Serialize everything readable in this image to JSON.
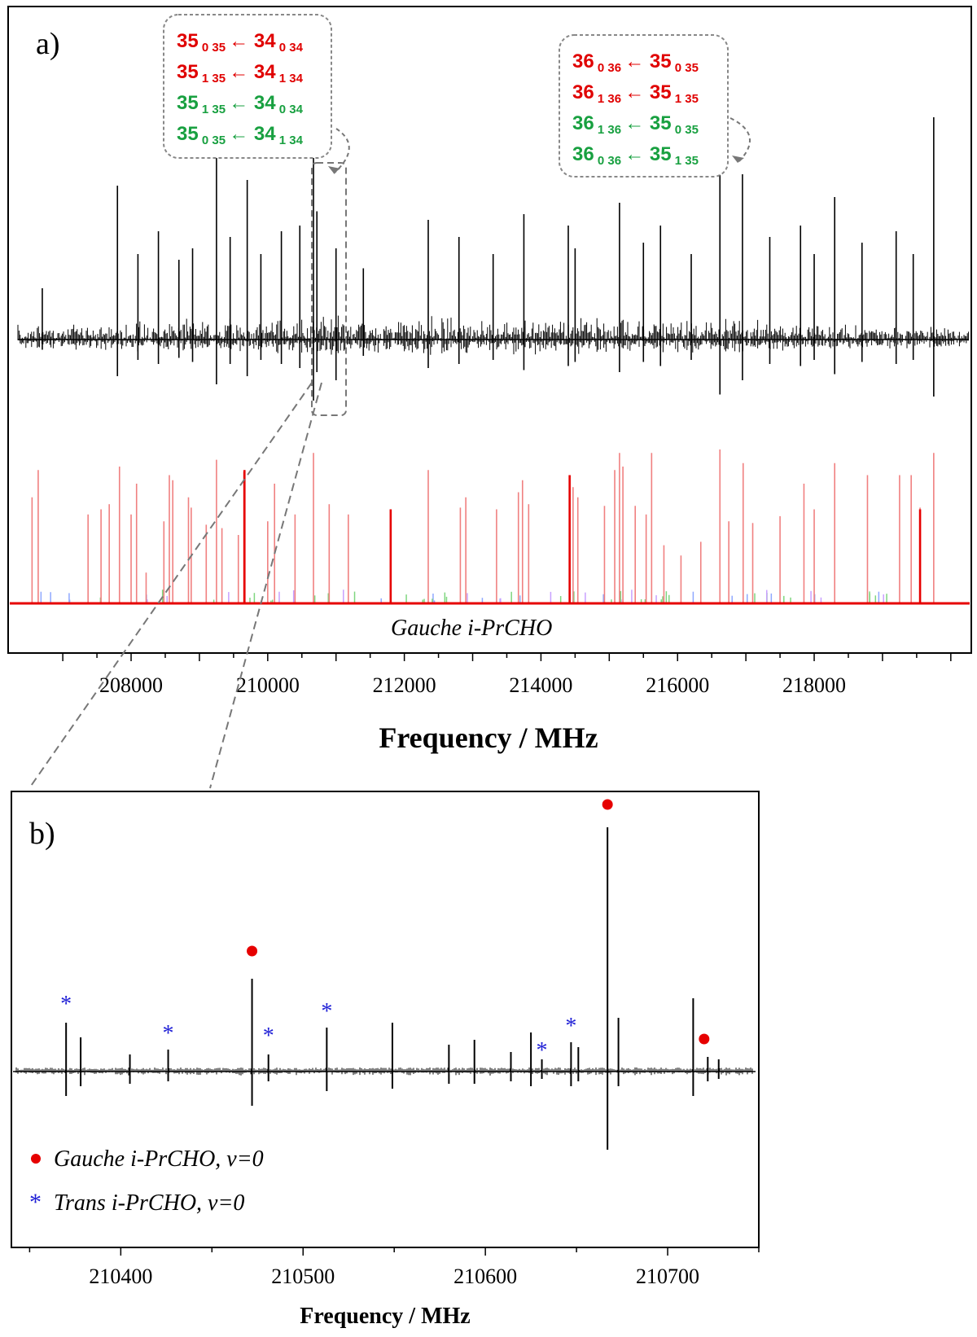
{
  "colors": {
    "observed": "#000000",
    "gauche_sim": "#e60000",
    "gauche_sim_light": "#f08080",
    "trans_marker": "#1f1fd6",
    "gauche_marker": "#e60000",
    "label_red": "#e00000",
    "label_green": "#18a040",
    "callout_border": "#888888"
  },
  "chart_data": [
    {
      "panel": "a)",
      "type": "line",
      "description_source": "stick spectrum: observed (black, top) and simulated Gauche i-PrCHO (red, bottom)",
      "xlabel": "Frequency / MHz",
      "xlim": [
        206200,
        220300
      ],
      "xticks": [
        208000,
        210000,
        212000,
        214000,
        216000,
        218000
      ],
      "xtick_labels": [
        "208000",
        "210000",
        "212000",
        "214000",
        "216000",
        "218000"
      ],
      "simulated_label": "Gauche i-PrCHO",
      "observed_peaks": [
        {
          "x": 206700,
          "up": 0.18,
          "down": 0.05
        },
        {
          "x": 207800,
          "up": 0.54,
          "down": 0.18
        },
        {
          "x": 208100,
          "up": 0.3,
          "down": 0.1
        },
        {
          "x": 208400,
          "up": 0.38,
          "down": 0.12
        },
        {
          "x": 208700,
          "up": 0.28,
          "down": 0.09
        },
        {
          "x": 208900,
          "up": 0.32,
          "down": 0.11
        },
        {
          "x": 209250,
          "up": 0.72,
          "down": 0.22
        },
        {
          "x": 209450,
          "up": 0.36,
          "down": 0.12
        },
        {
          "x": 209700,
          "up": 0.56,
          "down": 0.18
        },
        {
          "x": 209900,
          "up": 0.3,
          "down": 0.1
        },
        {
          "x": 210200,
          "up": 0.38,
          "down": 0.12
        },
        {
          "x": 210470,
          "up": 0.4,
          "down": 0.14
        },
        {
          "x": 210670,
          "up": 0.78,
          "down": 0.3
        },
        {
          "x": 210720,
          "up": 0.45,
          "down": 0.16
        },
        {
          "x": 211000,
          "up": 0.32,
          "down": 0.2
        },
        {
          "x": 211400,
          "up": 0.25,
          "down": 0.08
        },
        {
          "x": 212350,
          "up": 0.42,
          "down": 0.14
        },
        {
          "x": 212800,
          "up": 0.36,
          "down": 0.12
        },
        {
          "x": 213300,
          "up": 0.3,
          "down": 0.1
        },
        {
          "x": 213750,
          "up": 0.44,
          "down": 0.15
        },
        {
          "x": 214400,
          "up": 0.4,
          "down": 0.13
        },
        {
          "x": 214500,
          "up": 0.32,
          "down": 0.11
        },
        {
          "x": 215150,
          "up": 0.48,
          "down": 0.16
        },
        {
          "x": 215500,
          "up": 0.34,
          "down": 0.11
        },
        {
          "x": 215750,
          "up": 0.4,
          "down": 0.13
        },
        {
          "x": 216200,
          "up": 0.3,
          "down": 0.1
        },
        {
          "x": 216620,
          "up": 0.72,
          "down": 0.27
        },
        {
          "x": 216950,
          "up": 0.58,
          "down": 0.2
        },
        {
          "x": 217350,
          "up": 0.36,
          "down": 0.12
        },
        {
          "x": 217800,
          "up": 0.4,
          "down": 0.13
        },
        {
          "x": 218000,
          "up": 0.3,
          "down": 0.1
        },
        {
          "x": 218300,
          "up": 0.5,
          "down": 0.17
        },
        {
          "x": 218700,
          "up": 0.34,
          "down": 0.11
        },
        {
          "x": 219200,
          "up": 0.38,
          "down": 0.12
        },
        {
          "x": 219450,
          "up": 0.3,
          "down": 0.1
        },
        {
          "x": 219750,
          "up": 0.78,
          "down": 0.28
        }
      ],
      "simulated_peaks": [
        {
          "x": 206550,
          "h": 0.62
        },
        {
          "x": 206640,
          "h": 0.78
        },
        {
          "x": 207370,
          "h": 0.52
        },
        {
          "x": 207560,
          "h": 0.55
        },
        {
          "x": 207680,
          "h": 0.58
        },
        {
          "x": 207830,
          "h": 0.8
        },
        {
          "x": 208000,
          "h": 0.52
        },
        {
          "x": 208080,
          "h": 0.7
        },
        {
          "x": 208220,
          "h": 0.18
        },
        {
          "x": 208480,
          "h": 0.48
        },
        {
          "x": 208560,
          "h": 0.75
        },
        {
          "x": 208610,
          "h": 0.72
        },
        {
          "x": 208840,
          "h": 0.62
        },
        {
          "x": 208880,
          "h": 0.56
        },
        {
          "x": 209100,
          "h": 0.46
        },
        {
          "x": 209250,
          "h": 0.84
        },
        {
          "x": 209330,
          "h": 0.44
        },
        {
          "x": 209570,
          "h": 0.4
        },
        {
          "x": 209650,
          "h": 0.77
        },
        {
          "x": 210000,
          "h": 0.48
        },
        {
          "x": 210100,
          "h": 0.7
        },
        {
          "x": 210400,
          "h": 0.52
        },
        {
          "x": 210670,
          "h": 0.88
        },
        {
          "x": 210900,
          "h": 0.58
        },
        {
          "x": 211180,
          "h": 0.52
        },
        {
          "x": 211800,
          "h": 0.55
        },
        {
          "x": 212350,
          "h": 0.78
        },
        {
          "x": 212820,
          "h": 0.56
        },
        {
          "x": 212900,
          "h": 0.62
        },
        {
          "x": 213350,
          "h": 0.55
        },
        {
          "x": 213670,
          "h": 0.65
        },
        {
          "x": 213730,
          "h": 0.72
        },
        {
          "x": 213820,
          "h": 0.58
        },
        {
          "x": 214420,
          "h": 0.75
        },
        {
          "x": 214470,
          "h": 0.68
        },
        {
          "x": 214540,
          "h": 0.62
        },
        {
          "x": 214930,
          "h": 0.57
        },
        {
          "x": 215080,
          "h": 0.78
        },
        {
          "x": 215150,
          "h": 0.88
        },
        {
          "x": 215200,
          "h": 0.8
        },
        {
          "x": 215380,
          "h": 0.57
        },
        {
          "x": 215540,
          "h": 0.52
        },
        {
          "x": 215620,
          "h": 0.88
        },
        {
          "x": 215800,
          "h": 0.34
        },
        {
          "x": 216050,
          "h": 0.28
        },
        {
          "x": 216340,
          "h": 0.36
        },
        {
          "x": 216620,
          "h": 0.9
        },
        {
          "x": 216750,
          "h": 0.48
        },
        {
          "x": 216960,
          "h": 0.82
        },
        {
          "x": 217100,
          "h": 0.47
        },
        {
          "x": 217500,
          "h": 0.51
        },
        {
          "x": 217850,
          "h": 0.7
        },
        {
          "x": 218000,
          "h": 0.55
        },
        {
          "x": 218300,
          "h": 0.82
        },
        {
          "x": 218780,
          "h": 0.75
        },
        {
          "x": 219250,
          "h": 0.75
        },
        {
          "x": 219420,
          "h": 0.75
        },
        {
          "x": 219550,
          "h": 0.56
        },
        {
          "x": 219750,
          "h": 0.88
        }
      ],
      "simulated_strong": [
        {
          "x": 209660,
          "h": 0.78
        },
        {
          "x": 211800,
          "h": 0.55
        },
        {
          "x": 214420,
          "h": 0.75
        },
        {
          "x": 219550,
          "h": 0.55
        }
      ],
      "callouts": [
        {
          "lines": [
            {
              "j_up": "35",
              "k_up": "0 35",
              "j_lo": "34",
              "k_lo": "0 34",
              "color": "red"
            },
            {
              "j_up": "35",
              "k_up": "1 35",
              "j_lo": "34",
              "k_lo": "1 34",
              "color": "red"
            },
            {
              "j_up": "35",
              "k_up": "1 35",
              "j_lo": "34",
              "k_lo": "0 34",
              "color": "green"
            },
            {
              "j_up": "35",
              "k_up": "0 35",
              "j_lo": "34",
              "k_lo": "1 34",
              "color": "green"
            }
          ],
          "arrow_glyph": "←"
        },
        {
          "lines": [
            {
              "j_up": "36",
              "k_up": "0 36",
              "j_lo": "35",
              "k_lo": "0 35",
              "color": "red"
            },
            {
              "j_up": "36",
              "k_up": "1 36",
              "j_lo": "35",
              "k_lo": "1 35",
              "color": "red"
            },
            {
              "j_up": "36",
              "k_up": "1 36",
              "j_lo": "35",
              "k_lo": "0 35",
              "color": "green"
            },
            {
              "j_up": "36",
              "k_up": "0 36",
              "j_lo": "35",
              "k_lo": "1 35",
              "color": "green"
            }
          ],
          "arrow_glyph": "←"
        }
      ],
      "zoom_window": [
        210470,
        210800
      ]
    },
    {
      "panel": "b)",
      "type": "line",
      "xlabel": "Frequency / MHz",
      "xlim": [
        210340,
        210750
      ],
      "xticks": [
        210400,
        210500,
        210600,
        210700
      ],
      "xtick_labels": [
        "210400",
        "210500",
        "210600",
        "210700"
      ],
      "observed_peaks": [
        {
          "x": 210370,
          "up": 0.2,
          "down": 0.1
        },
        {
          "x": 210378,
          "up": 0.14,
          "down": 0.06
        },
        {
          "x": 210405,
          "up": 0.07,
          "down": 0.05
        },
        {
          "x": 210426,
          "up": 0.09,
          "down": 0.04
        },
        {
          "x": 210472,
          "up": 0.38,
          "down": 0.14
        },
        {
          "x": 210481,
          "up": 0.07,
          "down": 0.04
        },
        {
          "x": 210513,
          "up": 0.18,
          "down": 0.08
        },
        {
          "x": 210549,
          "up": 0.2,
          "down": 0.07
        },
        {
          "x": 210580,
          "up": 0.11,
          "down": 0.05
        },
        {
          "x": 210594,
          "up": 0.13,
          "down": 0.05
        },
        {
          "x": 210614,
          "up": 0.08,
          "down": 0.04
        },
        {
          "x": 210625,
          "up": 0.16,
          "down": 0.06
        },
        {
          "x": 210631,
          "up": 0.05,
          "down": 0.03
        },
        {
          "x": 210647,
          "up": 0.12,
          "down": 0.06
        },
        {
          "x": 210651,
          "up": 0.1,
          "down": 0.04
        },
        {
          "x": 210667,
          "up": 1.0,
          "down": 0.32
        },
        {
          "x": 210673,
          "up": 0.22,
          "down": 0.06
        },
        {
          "x": 210714,
          "up": 0.3,
          "down": 0.1
        },
        {
          "x": 210722,
          "up": 0.06,
          "down": 0.04
        },
        {
          "x": 210728,
          "up": 0.05,
          "down": 0.03
        }
      ],
      "markers": [
        {
          "x": 210370,
          "y": 0.26,
          "type": "trans"
        },
        {
          "x": 210426,
          "y": 0.14,
          "type": "trans"
        },
        {
          "x": 210472,
          "y": 0.46,
          "type": "gauche"
        },
        {
          "x": 210481,
          "y": 0.13,
          "type": "trans"
        },
        {
          "x": 210513,
          "y": 0.23,
          "type": "trans"
        },
        {
          "x": 210631,
          "y": 0.07,
          "type": "trans"
        },
        {
          "x": 210647,
          "y": 0.17,
          "type": "trans"
        },
        {
          "x": 210667,
          "y": 1.06,
          "type": "gauche"
        },
        {
          "x": 210720,
          "y": 0.1,
          "type": "gauche"
        }
      ],
      "legend": [
        {
          "symbol": "●",
          "type": "gauche",
          "label": "Gauche i-PrCHO, v=0"
        },
        {
          "symbol": "*",
          "type": "trans",
          "label": "Trans i-PrCHO, v=0"
        }
      ]
    }
  ]
}
